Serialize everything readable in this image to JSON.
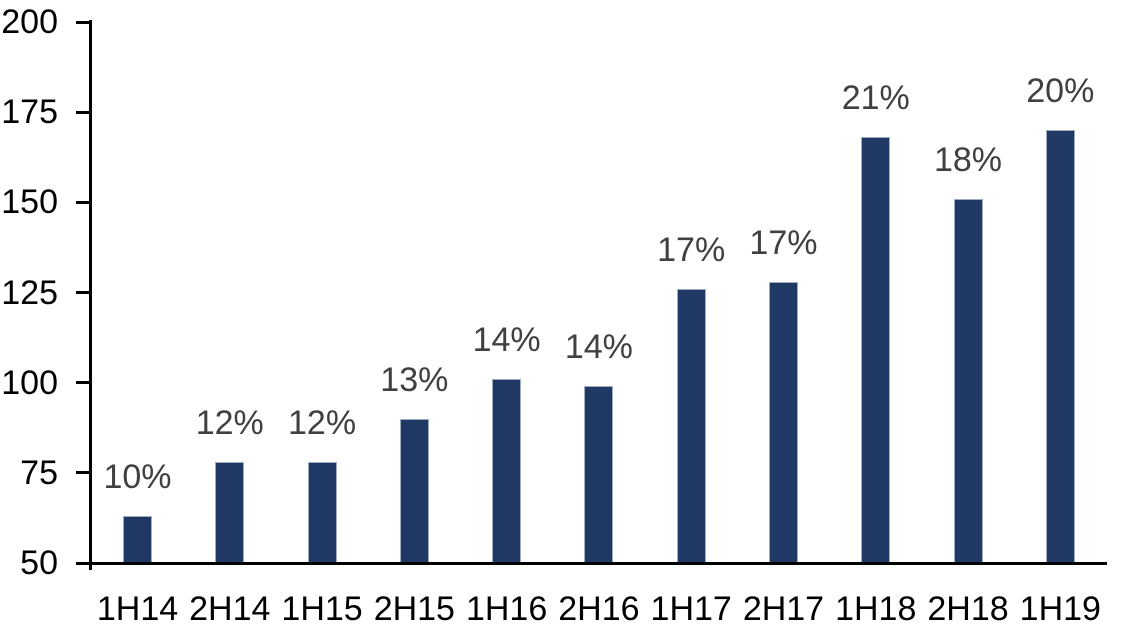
{
  "chart_data": {
    "type": "bar",
    "title": "",
    "xlabel": "",
    "ylabel": "",
    "categories": [
      "1H14",
      "2H14",
      "1H15",
      "2H15",
      "1H16",
      "2H16",
      "1H17",
      "2H17",
      "1H18",
      "2H18",
      "1H19"
    ],
    "values": [
      63,
      78,
      78,
      90,
      101,
      99,
      126,
      128,
      168,
      151,
      170
    ],
    "data_labels": [
      "10%",
      "12%",
      "12%",
      "13%",
      "14%",
      "14%",
      "17%",
      "17%",
      "21%",
      "18%",
      "20%"
    ],
    "ylim": [
      50,
      200
    ],
    "yticks": [
      50,
      75,
      100,
      125,
      150,
      175,
      200
    ],
    "ytick_labels": [
      "50",
      "75",
      "100",
      "125",
      "150",
      "175",
      "200"
    ],
    "grid": false,
    "legend_position": "none",
    "colors": {
      "bar_fill": "#1f3864",
      "bar_border": "#9fadc2",
      "data_label": "#404040",
      "axis_line": "#000000",
      "tick_label": "#000000"
    }
  }
}
